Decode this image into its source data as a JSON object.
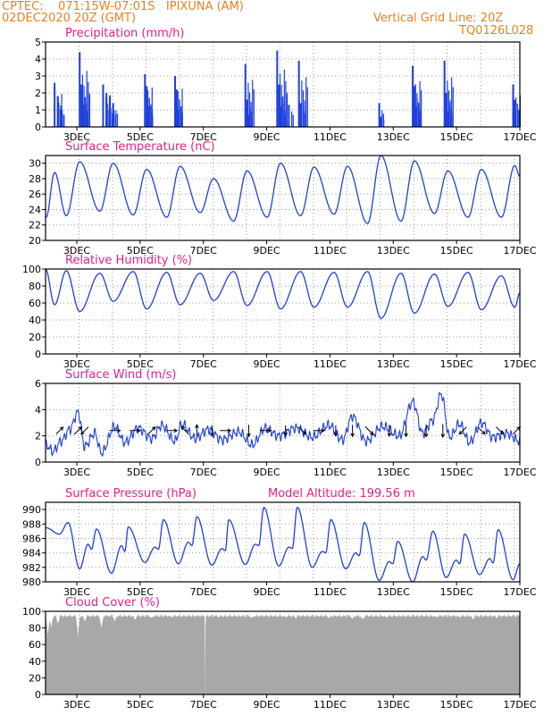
{
  "header": {
    "line1_left": "CPTEC:    071:15W-07:01S   IPIXUNA (AM)",
    "line2_left": "02DEC2020 20Z (GMT)",
    "line1_right": "Vertical Grid Line: 20Z",
    "line2_right": "TQ0126L028"
  },
  "colors": {
    "header": "#e8821e",
    "panel_title": "#e0208c",
    "series": "#1f3fdc",
    "wind_arrows": "#000000",
    "cloud_fill": "#a8a8a8",
    "grid": "#9a9a9a"
  },
  "x_tick_labels": [
    "3DEC",
    "5DEC",
    "7DEC",
    "9DEC",
    "11DEC",
    "13DEC",
    "15DEC",
    "17DEC"
  ],
  "chart_data": [
    {
      "type": "bar",
      "title": "Precipitation (mm/h)",
      "x_range_days": [
        2.83,
        17.0
      ],
      "ylim": [
        0,
        5
      ],
      "yticks": [
        0,
        1,
        2,
        3,
        4,
        5
      ],
      "grid": true,
      "events": [
        {
          "day": 3.1,
          "value": 2.6
        },
        {
          "day": 3.2,
          "value": 1.8
        },
        {
          "day": 3.3,
          "value": 1.0
        },
        {
          "day": 3.85,
          "value": 4.4
        },
        {
          "day": 3.9,
          "value": 2.5
        },
        {
          "day": 3.95,
          "value": 1.3
        },
        {
          "day": 4.55,
          "value": 2.5
        },
        {
          "day": 4.65,
          "value": 2.0
        },
        {
          "day": 4.75,
          "value": 1.8
        },
        {
          "day": 4.85,
          "value": 1.4
        },
        {
          "day": 5.8,
          "value": 3.1
        },
        {
          "day": 5.85,
          "value": 2.4
        },
        {
          "day": 5.9,
          "value": 1.2
        },
        {
          "day": 6.7,
          "value": 3.0
        },
        {
          "day": 6.75,
          "value": 2.2
        },
        {
          "day": 6.8,
          "value": 1.0
        },
        {
          "day": 8.8,
          "value": 3.7
        },
        {
          "day": 8.85,
          "value": 1.6
        },
        {
          "day": 8.9,
          "value": 0.7
        },
        {
          "day": 9.75,
          "value": 4.5
        },
        {
          "day": 9.8,
          "value": 2.5
        },
        {
          "day": 9.85,
          "value": 1.2
        },
        {
          "day": 10.1,
          "value": 1.3
        },
        {
          "day": 10.4,
          "value": 3.9
        },
        {
          "day": 10.45,
          "value": 1.4
        },
        {
          "day": 12.8,
          "value": 1.4
        },
        {
          "day": 12.85,
          "value": 0.6
        },
        {
          "day": 13.8,
          "value": 3.6
        },
        {
          "day": 13.85,
          "value": 2.4
        },
        {
          "day": 13.9,
          "value": 1.2
        },
        {
          "day": 14.75,
          "value": 3.9
        },
        {
          "day": 14.8,
          "value": 2.0
        },
        {
          "day": 14.85,
          "value": 0.9
        },
        {
          "day": 16.8,
          "value": 2.5
        },
        {
          "day": 16.85,
          "value": 1.6
        }
      ]
    },
    {
      "type": "line",
      "title": "Surface Temperature (nC)",
      "x_range_days": [
        2.83,
        17.0
      ],
      "ylim": [
        20,
        31
      ],
      "yticks": [
        20,
        22,
        24,
        26,
        28,
        30
      ],
      "grid": true,
      "max": [
        {
          "day": 3.1,
          "value": 28.8
        },
        {
          "day": 3.85,
          "value": 30.2
        },
        {
          "day": 4.85,
          "value": 30.0
        },
        {
          "day": 5.85,
          "value": 29.2
        },
        {
          "day": 6.85,
          "value": 29.6
        },
        {
          "day": 7.85,
          "value": 28.0
        },
        {
          "day": 8.85,
          "value": 29.0
        },
        {
          "day": 9.85,
          "value": 30.0
        },
        {
          "day": 10.85,
          "value": 29.5
        },
        {
          "day": 11.85,
          "value": 29.6
        },
        {
          "day": 12.85,
          "value": 31.0
        },
        {
          "day": 13.85,
          "value": 30.3
        },
        {
          "day": 14.85,
          "value": 29.0
        },
        {
          "day": 15.85,
          "value": 29.2
        },
        {
          "day": 16.85,
          "value": 29.7
        }
      ],
      "min": [
        {
          "day": 2.85,
          "value": 23.0
        },
        {
          "day": 3.45,
          "value": 23.2
        },
        {
          "day": 4.45,
          "value": 23.8
        },
        {
          "day": 5.45,
          "value": 23.3
        },
        {
          "day": 6.45,
          "value": 23.0
        },
        {
          "day": 7.45,
          "value": 23.6
        },
        {
          "day": 8.45,
          "value": 22.5
        },
        {
          "day": 9.45,
          "value": 23.0
        },
        {
          "day": 10.45,
          "value": 23.2
        },
        {
          "day": 11.45,
          "value": 23.4
        },
        {
          "day": 12.45,
          "value": 22.2
        },
        {
          "day": 13.45,
          "value": 22.5
        },
        {
          "day": 14.45,
          "value": 23.5
        },
        {
          "day": 15.45,
          "value": 23.0
        },
        {
          "day": 16.45,
          "value": 23.0
        }
      ],
      "start_value": 23.0,
      "end_value": 28.3
    },
    {
      "type": "line",
      "title": "Relative Humidity (%)",
      "x_range_days": [
        2.83,
        17.0
      ],
      "ylim": [
        0,
        100
      ],
      "yticks": [
        0,
        20,
        40,
        60,
        80,
        100
      ],
      "grid": true,
      "max": [
        {
          "day": 3.45,
          "value": 98
        },
        {
          "day": 4.45,
          "value": 95
        },
        {
          "day": 5.45,
          "value": 97
        },
        {
          "day": 6.45,
          "value": 96
        },
        {
          "day": 7.45,
          "value": 95
        },
        {
          "day": 8.45,
          "value": 97
        },
        {
          "day": 9.45,
          "value": 97
        },
        {
          "day": 10.45,
          "value": 97
        },
        {
          "day": 11.45,
          "value": 96
        },
        {
          "day": 12.45,
          "value": 97
        },
        {
          "day": 13.45,
          "value": 95
        },
        {
          "day": 14.45,
          "value": 94
        },
        {
          "day": 15.45,
          "value": 96
        },
        {
          "day": 16.45,
          "value": 92
        }
      ],
      "min": [
        {
          "day": 3.1,
          "value": 58
        },
        {
          "day": 3.85,
          "value": 50
        },
        {
          "day": 4.85,
          "value": 62
        },
        {
          "day": 5.85,
          "value": 53
        },
        {
          "day": 6.85,
          "value": 58
        },
        {
          "day": 7.85,
          "value": 63
        },
        {
          "day": 8.85,
          "value": 57
        },
        {
          "day": 9.85,
          "value": 53
        },
        {
          "day": 10.85,
          "value": 55
        },
        {
          "day": 11.85,
          "value": 55
        },
        {
          "day": 12.85,
          "value": 42
        },
        {
          "day": 13.85,
          "value": 48
        },
        {
          "day": 14.85,
          "value": 56
        },
        {
          "day": 15.85,
          "value": 52
        },
        {
          "day": 16.85,
          "value": 55
        }
      ],
      "start_value": 100,
      "end_value": 72
    },
    {
      "type": "line",
      "title": "Surface Wind (m/s)",
      "x_range_days": [
        2.83,
        17.0
      ],
      "ylim": [
        0,
        6
      ],
      "yticks": [
        0,
        2,
        4,
        6
      ],
      "grid": true,
      "anchors": [
        {
          "day": 2.85,
          "value": 1.3
        },
        {
          "day": 3.05,
          "value": 0.8
        },
        {
          "day": 3.3,
          "value": 1.6
        },
        {
          "day": 3.55,
          "value": 2.5
        },
        {
          "day": 3.8,
          "value": 3.8
        },
        {
          "day": 4.0,
          "value": 1.2
        },
        {
          "day": 4.3,
          "value": 2.2
        },
        {
          "day": 4.5,
          "value": 0.7
        },
        {
          "day": 4.9,
          "value": 2.7
        },
        {
          "day": 5.2,
          "value": 1.5
        },
        {
          "day": 5.6,
          "value": 2.6
        },
        {
          "day": 6.0,
          "value": 1.8
        },
        {
          "day": 6.3,
          "value": 2.8
        },
        {
          "day": 6.7,
          "value": 1.6
        },
        {
          "day": 6.9,
          "value": 2.9
        },
        {
          "day": 7.3,
          "value": 1.8
        },
        {
          "day": 7.7,
          "value": 2.5
        },
        {
          "day": 8.1,
          "value": 1.7
        },
        {
          "day": 8.6,
          "value": 2.3
        },
        {
          "day": 9.0,
          "value": 1.3
        },
        {
          "day": 9.4,
          "value": 2.6
        },
        {
          "day": 9.8,
          "value": 2.0
        },
        {
          "day": 10.3,
          "value": 2.6
        },
        {
          "day": 10.8,
          "value": 1.9
        },
        {
          "day": 11.3,
          "value": 2.8
        },
        {
          "day": 11.7,
          "value": 1.7
        },
        {
          "day": 12.0,
          "value": 3.5
        },
        {
          "day": 12.4,
          "value": 1.6
        },
        {
          "day": 12.9,
          "value": 2.7
        },
        {
          "day": 13.4,
          "value": 2.0
        },
        {
          "day": 13.8,
          "value": 4.6
        },
        {
          "day": 14.1,
          "value": 2.2
        },
        {
          "day": 14.4,
          "value": 3.2
        },
        {
          "day": 14.65,
          "value": 5.2
        },
        {
          "day": 14.9,
          "value": 1.9
        },
        {
          "day": 15.2,
          "value": 2.9
        },
        {
          "day": 15.5,
          "value": 1.5
        },
        {
          "day": 15.85,
          "value": 3.0
        },
        {
          "day": 16.2,
          "value": 1.9
        },
        {
          "day": 16.6,
          "value": 2.2
        },
        {
          "day": 17.0,
          "value": 1.6
        }
      ],
      "wind_arrows": [
        {
          "day": 3.25,
          "dir": "NE",
          "length": 0.8
        },
        {
          "day": 3.8,
          "dir": "NE",
          "length": 1.0
        },
        {
          "day": 4.0,
          "dir": "SW",
          "length": 0.9
        },
        {
          "day": 4.9,
          "dir": "E",
          "length": 1.0
        },
        {
          "day": 5.5,
          "dir": "E",
          "length": 1.0
        },
        {
          "day": 6.0,
          "dir": "NE",
          "length": 0.9
        },
        {
          "day": 6.6,
          "dir": "E",
          "length": 1.0
        },
        {
          "day": 7.0,
          "dir": "NW",
          "length": 1.0
        },
        {
          "day": 7.35,
          "dir": "N",
          "length": 1.2
        },
        {
          "day": 7.8,
          "dir": "S",
          "length": 1.0
        },
        {
          "day": 8.2,
          "dir": "E",
          "length": 1.0
        },
        {
          "day": 8.9,
          "dir": "S",
          "length": 1.2
        },
        {
          "day": 9.4,
          "dir": "E",
          "length": 1.0
        },
        {
          "day": 10.0,
          "dir": "S",
          "length": 0.9
        },
        {
          "day": 10.5,
          "dir": "SE",
          "length": 0.9
        },
        {
          "day": 11.0,
          "dir": "E",
          "length": 1.0
        },
        {
          "day": 11.5,
          "dir": "S",
          "length": 1.0
        },
        {
          "day": 12.0,
          "dir": "S",
          "length": 1.2
        },
        {
          "day": 12.5,
          "dir": "SE",
          "length": 1.2
        },
        {
          "day": 13.1,
          "dir": "S",
          "length": 1.1
        },
        {
          "day": 13.6,
          "dir": "S",
          "length": 1.2
        },
        {
          "day": 14.2,
          "dir": "S",
          "length": 1.3
        },
        {
          "day": 14.7,
          "dir": "S",
          "length": 1.5
        },
        {
          "day": 15.3,
          "dir": "SW",
          "length": 0.9
        },
        {
          "day": 15.85,
          "dir": "SE",
          "length": 0.9
        },
        {
          "day": 16.4,
          "dir": "SE",
          "length": 0.9
        },
        {
          "day": 16.9,
          "dir": "NE",
          "length": 0.9
        }
      ]
    },
    {
      "type": "line",
      "title": "Surface Pressure (hPa)",
      "annotation": "Model Altitude: 199.56 m",
      "x_range_days": [
        2.83,
        17.0
      ],
      "ylim": [
        980,
        991
      ],
      "yticks": [
        980,
        982,
        984,
        986,
        988,
        990
      ],
      "grid": true,
      "start_value": 987.5,
      "end_value": 982.5,
      "highs": [
        {
          "day": 3.5,
          "value": 988.2
        },
        {
          "day": 4.35,
          "value": 987.3
        },
        {
          "day": 5.3,
          "value": 987.6
        },
        {
          "day": 6.35,
          "value": 988.6
        },
        {
          "day": 7.35,
          "value": 989.0
        },
        {
          "day": 8.3,
          "value": 988.6
        },
        {
          "day": 9.35,
          "value": 990.3
        },
        {
          "day": 10.35,
          "value": 990.3
        },
        {
          "day": 11.35,
          "value": 988.6
        },
        {
          "day": 12.35,
          "value": 988.2
        },
        {
          "day": 13.35,
          "value": 985.6
        },
        {
          "day": 14.4,
          "value": 987.0
        },
        {
          "day": 15.35,
          "value": 986.6
        },
        {
          "day": 16.35,
          "value": 987.2
        }
      ],
      "lows": [
        {
          "day": 3.85,
          "value": 981.8
        },
        {
          "day": 4.8,
          "value": 981.2
        },
        {
          "day": 5.8,
          "value": 982.7
        },
        {
          "day": 6.8,
          "value": 982.5
        },
        {
          "day": 7.8,
          "value": 982.3
        },
        {
          "day": 8.8,
          "value": 982.4
        },
        {
          "day": 9.8,
          "value": 982.2
        },
        {
          "day": 10.8,
          "value": 982.0
        },
        {
          "day": 11.8,
          "value": 981.8
        },
        {
          "day": 12.8,
          "value": 980.2
        },
        {
          "day": 13.8,
          "value": 980.0
        },
        {
          "day": 14.8,
          "value": 980.6
        },
        {
          "day": 15.8,
          "value": 981.0
        },
        {
          "day": 16.8,
          "value": 980.3
        }
      ],
      "secondary_highs": [
        {
          "day": 4.1,
          "value": 985.2
        },
        {
          "day": 5.1,
          "value": 985.0
        },
        {
          "day": 6.1,
          "value": 984.8
        },
        {
          "day": 7.1,
          "value": 985.5
        },
        {
          "day": 8.1,
          "value": 984.6
        },
        {
          "day": 9.1,
          "value": 985.2
        },
        {
          "day": 10.1,
          "value": 984.8
        },
        {
          "day": 11.1,
          "value": 984.2
        },
        {
          "day": 12.1,
          "value": 984.0
        },
        {
          "day": 13.1,
          "value": 982.8
        },
        {
          "day": 14.1,
          "value": 983.5
        },
        {
          "day": 15.1,
          "value": 983.0
        },
        {
          "day": 16.1,
          "value": 983.2
        }
      ],
      "secondary_lows": [
        {
          "day": 3.25,
          "value": 986.6
        },
        {
          "day": 4.2,
          "value": 984.5
        },
        {
          "day": 5.2,
          "value": 984.2
        },
        {
          "day": 6.2,
          "value": 984.5
        },
        {
          "day": 7.2,
          "value": 985.0
        },
        {
          "day": 8.2,
          "value": 984.3
        },
        {
          "day": 9.2,
          "value": 985.0
        },
        {
          "day": 10.2,
          "value": 984.6
        },
        {
          "day": 11.2,
          "value": 984.0
        },
        {
          "day": 12.2,
          "value": 983.6
        },
        {
          "day": 13.2,
          "value": 982.5
        },
        {
          "day": 14.2,
          "value": 983.0
        },
        {
          "day": 15.2,
          "value": 982.5
        },
        {
          "day": 16.2,
          "value": 982.6
        }
      ]
    },
    {
      "type": "area",
      "title": "Cloud Cover (%)",
      "x_range_days": [
        2.83,
        17.0
      ],
      "ylim": [
        0,
        100
      ],
      "yticks": [
        0,
        20,
        40,
        60,
        80,
        100
      ],
      "grid": true,
      "baseline_value": 97,
      "dips": [
        {
          "day": 2.9,
          "value": 72
        },
        {
          "day": 3.0,
          "value": 80
        },
        {
          "day": 3.2,
          "value": 85
        },
        {
          "day": 3.8,
          "value": 70
        },
        {
          "day": 4.0,
          "value": 88
        },
        {
          "day": 4.5,
          "value": 80
        },
        {
          "day": 4.9,
          "value": 88
        },
        {
          "day": 5.5,
          "value": 90
        },
        {
          "day": 6.0,
          "value": 92
        },
        {
          "day": 6.6,
          "value": 93
        },
        {
          "day": 7.6,
          "value": 0
        },
        {
          "day": 8.0,
          "value": 93
        },
        {
          "day": 9.0,
          "value": 92
        },
        {
          "day": 10.0,
          "value": 93
        },
        {
          "day": 10.3,
          "value": 92
        },
        {
          "day": 11.3,
          "value": 92
        },
        {
          "day": 12.0,
          "value": 91
        },
        {
          "day": 12.3,
          "value": 90
        },
        {
          "day": 13.0,
          "value": 93
        },
        {
          "day": 14.5,
          "value": 93
        },
        {
          "day": 15.2,
          "value": 93
        },
        {
          "day": 15.6,
          "value": 90
        },
        {
          "day": 16.3,
          "value": 92
        }
      ]
    }
  ]
}
